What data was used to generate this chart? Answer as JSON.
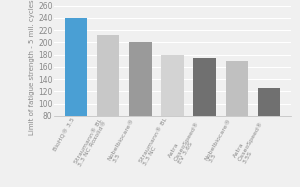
{
  "categories": [
    "BioHQ® 3.5",
    "Straumann® BL\n3.3 NC Roxolid®",
    "Nobelbiocare®\n3.5",
    "Straumann® BL\n3.3 NC",
    "Astra\nOsseoSpeed®\nEV 3.6S",
    "Nobelbiocare®\n3.5",
    "Astra\nOsseoSpeed®\n3.5S"
  ],
  "values": [
    240,
    212,
    200,
    179,
    175,
    169,
    126
  ],
  "bar_colors": [
    "#4a9fd4",
    "#c8c8c8",
    "#9a9a9a",
    "#d3d3d3",
    "#707070",
    "#c0c0c0",
    "#707070"
  ],
  "ylabel": "Limit of fatigue strength - 5 mil. cycles (N)",
  "ylim": [
    80,
    260
  ],
  "yticks": [
    80,
    100,
    120,
    140,
    160,
    180,
    200,
    220,
    240,
    260
  ],
  "background_color": "#f0f0f0",
  "plot_bg": "#f0f0f0",
  "ylabel_fontsize": 5.0,
  "tick_fontsize": 5.5,
  "xlabel_fontsize": 4.5,
  "grid_color": "#ffffff",
  "spine_color": "#bbbbbb",
  "text_color": "#888888"
}
